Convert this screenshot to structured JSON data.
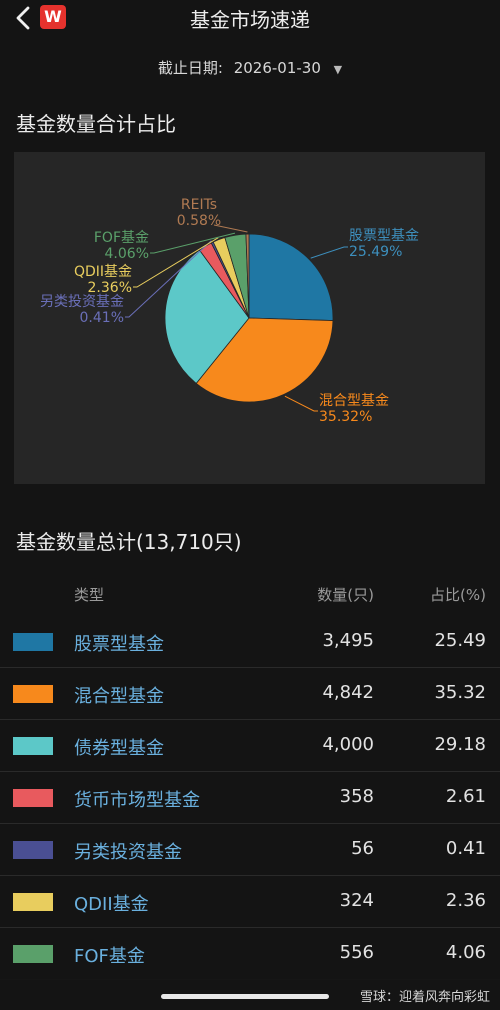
{
  "header": {
    "title": "基金市场速递",
    "logo_letter": "W"
  },
  "date": {
    "label": "截止日期:",
    "value": "2026-01-30"
  },
  "section1": {
    "title": "基金数量合计占比"
  },
  "section2": {
    "title": "基金数量总计(13,710只)"
  },
  "table": {
    "col_type": "类型",
    "col_count": "数量(只)",
    "col_pct": "占比(%)",
    "rows": [
      {
        "name": "股票型基金",
        "count": "3,495",
        "pct": "25.49",
        "color": "#1f77a4"
      },
      {
        "name": "混合型基金",
        "count": "4,842",
        "pct": "35.32",
        "color": "#f7891c"
      },
      {
        "name": "债券型基金",
        "count": "4,000",
        "pct": "29.18",
        "color": "#5cc8c8"
      },
      {
        "name": "货币市场型基金",
        "count": "358",
        "pct": "2.61",
        "color": "#e85a5e"
      },
      {
        "name": "另类投资基金",
        "count": "56",
        "pct": "0.41",
        "color": "#4a4f93"
      },
      {
        "name": "QDII基金",
        "count": "324",
        "pct": "2.36",
        "color": "#e8cd5e"
      },
      {
        "name": "FOF基金",
        "count": "556",
        "pct": "4.06",
        "color": "#5aa06a"
      }
    ]
  },
  "chart_data": {
    "type": "pie",
    "slices": [
      {
        "name": "股票型基金",
        "value": 25.49,
        "label": "25.49%",
        "color": "#1f77a4",
        "text_color": "#3d8fbd"
      },
      {
        "name": "混合型基金",
        "value": 35.32,
        "label": "35.32%",
        "color": "#f7891c",
        "text_color": "#f7891c"
      },
      {
        "name": "债券型基金",
        "value": 29.18,
        "color": "#5cc8c8"
      },
      {
        "name": "货币市场型基金",
        "value": 2.61,
        "color": "#e85a5e"
      },
      {
        "name": "另类投资基金",
        "value": 0.41,
        "label": "0.41%",
        "color": "#4a4f93",
        "text_color": "#6a6fb8"
      },
      {
        "name": "QDII基金",
        "value": 2.36,
        "label": "2.36%",
        "color": "#e8cd5e",
        "text_color": "#e8cd5e"
      },
      {
        "name": "FOF基金",
        "value": 4.06,
        "label": "4.06%",
        "color": "#5aa06a",
        "text_color": "#5aa06a"
      },
      {
        "name": "REITs",
        "value": 0.58,
        "label": "0.58%",
        "color": "#b07a52",
        "text_color": "#b07a52"
      }
    ]
  },
  "watermark": "雪球：迎着风奔向彩虹"
}
